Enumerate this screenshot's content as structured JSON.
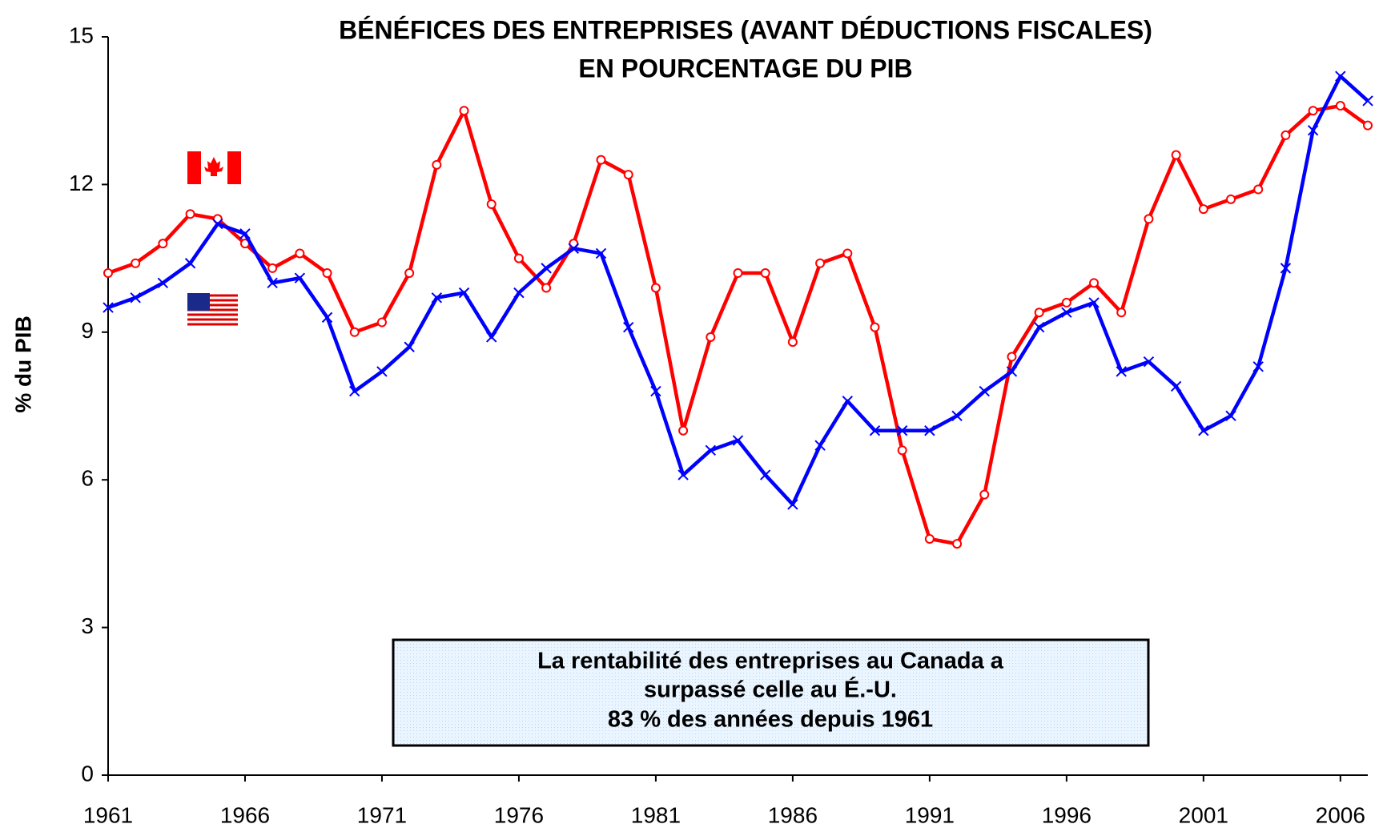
{
  "chart_data": {
    "type": "line",
    "title": [
      "BÉNÉFICES DES ENTREPRISES (AVANT DÉDUCTIONS FISCALES)",
      "EN POURCENTAGE DU PIB"
    ],
    "y_label": "% du PIB",
    "annotation": [
      "La rentabilité des entreprises au Canada a",
      "surpassé celle au É.-U.",
      "83 % des années depuis 1961"
    ],
    "x": [
      1961,
      1962,
      1963,
      1964,
      1965,
      1966,
      1967,
      1968,
      1969,
      1970,
      1971,
      1972,
      1973,
      1974,
      1975,
      1976,
      1977,
      1978,
      1979,
      1980,
      1981,
      1982,
      1983,
      1984,
      1985,
      1986,
      1987,
      1988,
      1989,
      1990,
      1991,
      1992,
      1993,
      1994,
      1995,
      1996,
      1997,
      1998,
      1999,
      2000,
      2001,
      2002,
      2003,
      2004,
      2005,
      2006,
      2007
    ],
    "series": [
      {
        "color": "#ff0000",
        "marker": "circle",
        "values": [
          10.2,
          10.4,
          10.8,
          11.4,
          11.3,
          10.8,
          10.3,
          10.6,
          10.2,
          9.0,
          9.2,
          10.2,
          12.4,
          13.5,
          11.6,
          10.5,
          9.9,
          10.8,
          12.5,
          12.2,
          9.9,
          7.0,
          8.9,
          10.2,
          10.2,
          8.8,
          10.4,
          10.6,
          9.1,
          6.6,
          4.8,
          4.7,
          5.7,
          8.5,
          9.4,
          9.6,
          10.0,
          9.4,
          11.3,
          12.6,
          11.5,
          11.7,
          11.9,
          13.0,
          13.5,
          13.6,
          13.2
        ]
      },
      {
        "color": "#0000ff",
        "marker": "x",
        "values": [
          9.5,
          9.7,
          10.0,
          10.4,
          11.2,
          11.0,
          10.0,
          10.1,
          9.3,
          7.8,
          8.2,
          8.7,
          9.7,
          9.8,
          8.9,
          9.8,
          10.3,
          10.7,
          10.6,
          9.1,
          7.8,
          6.1,
          6.6,
          6.8,
          6.1,
          5.5,
          6.7,
          7.6,
          7.0,
          7.0,
          7.0,
          7.3,
          7.8,
          8.2,
          9.1,
          9.4,
          9.6,
          8.2,
          8.4,
          7.9,
          7.0,
          7.3,
          8.3,
          10.3,
          13.1,
          14.2,
          13.7
        ]
      }
    ],
    "xlim": [
      1961,
      2007
    ],
    "xticks": [
      1961,
      1966,
      1971,
      1976,
      1981,
      1986,
      1991,
      1996,
      2001,
      2006
    ],
    "ylim": [
      0,
      15
    ],
    "yticks": [
      0,
      3,
      6,
      9,
      12,
      15
    ]
  }
}
